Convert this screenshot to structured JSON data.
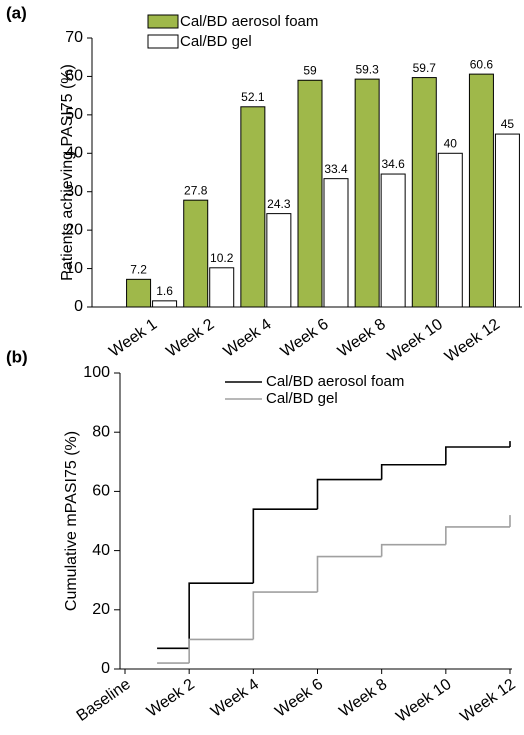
{
  "chart_data": [
    {
      "type": "bar",
      "panel_label": "(a)",
      "y_label": "Patients achieving PASI75 (%)",
      "categories": [
        "Week 1",
        "Week 2",
        "Week 4",
        "Week 6",
        "Week 8",
        "Week 10",
        "Week 12"
      ],
      "series": [
        {
          "name": "Cal/BD aerosol foam",
          "color": "#9fb84a",
          "values": [
            7.2,
            27.8,
            52.1,
            59,
            59.3,
            59.7,
            60.6
          ]
        },
        {
          "name": "Cal/BD gel",
          "color": "#ffffff",
          "values": [
            1.6,
            10.2,
            24.3,
            33.4,
            34.6,
            40,
            45
          ]
        }
      ],
      "ylim": [
        0,
        70
      ],
      "yticks": [
        0,
        10,
        20,
        30,
        40,
        50,
        60,
        70
      ],
      "legend": "top-left"
    },
    {
      "type": "step-line",
      "panel_label": "(b)",
      "y_label": "Cumulative mPASI75 (%)",
      "xlim": [
        0,
        12
      ],
      "xticks": [
        {
          "value": 0,
          "label": "Baseline"
        },
        {
          "value": 2,
          "label": "Week 2"
        },
        {
          "value": 4,
          "label": "Week 4"
        },
        {
          "value": 6,
          "label": "Week 6"
        },
        {
          "value": 8,
          "label": "Week 8"
        },
        {
          "value": 10,
          "label": "Week 10"
        },
        {
          "value": 12,
          "label": "Week 12"
        }
      ],
      "x": [
        1,
        2,
        4,
        6,
        8,
        10,
        12
      ],
      "series": [
        {
          "name": "Cal/BD aerosol foam",
          "color": "#000000",
          "values": [
            7,
            29,
            54,
            64,
            69,
            75,
            77
          ]
        },
        {
          "name": "Cal/BD gel",
          "color": "#a0a0a0",
          "values": [
            2,
            10,
            26,
            38,
            42,
            48,
            52
          ]
        }
      ],
      "ylim": [
        0,
        100
      ],
      "yticks": [
        0,
        20,
        40,
        60,
        80,
        100
      ],
      "legend": "top-center"
    }
  ]
}
